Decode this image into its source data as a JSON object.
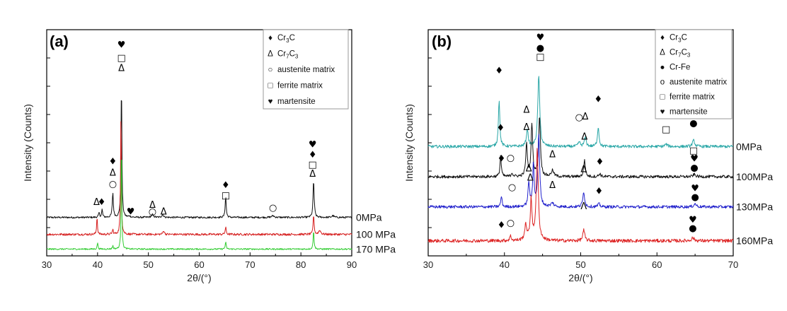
{
  "chart_data": [
    {
      "type": "line",
      "panel_label": "(a)",
      "xlabel": "2θ/(°)",
      "ylabel": "Intensity (Counts)",
      "xlim": [
        30,
        90
      ],
      "xticks": [
        30,
        40,
        50,
        60,
        70,
        80,
        90
      ],
      "series": [
        {
          "name": "0MPa",
          "color": "#111111",
          "offset": 0.68,
          "noise": 0.01,
          "peaks": [
            [
              40.3,
              0.08,
              0.25
            ],
            [
              40.9,
              0.14,
              0.22
            ],
            [
              43.0,
              0.44,
              0.25
            ],
            [
              44.7,
              2.45,
              0.2
            ],
            [
              46.3,
              0.02,
              0.4
            ],
            [
              50.8,
              0.05,
              0.5
            ],
            [
              52.8,
              0.05,
              0.4
            ],
            [
              65.2,
              0.36,
              0.25
            ],
            [
              74.5,
              0.03,
              0.6
            ],
            [
              82.5,
              0.66,
              0.26
            ],
            [
              86.3,
              0.03,
              0.5
            ]
          ]
        },
        {
          "name": "100 MPa",
          "color": "#d62020",
          "offset": 0.38,
          "noise": 0.012,
          "peaks": [
            [
              39.9,
              0.33,
              0.18
            ],
            [
              43.0,
              0.08,
              0.25
            ],
            [
              44.6,
              2.2,
              0.18
            ],
            [
              53.0,
              0.07,
              0.3
            ],
            [
              65.2,
              0.12,
              0.25
            ],
            [
              82.5,
              0.36,
              0.22
            ],
            [
              83.7,
              0.07,
              0.5
            ]
          ]
        },
        {
          "name": "170 MPa",
          "color": "#33cc33",
          "offset": 0.12,
          "noise": 0.008,
          "peaks": [
            [
              40.0,
              0.12,
              0.18
            ],
            [
              43.0,
              0.06,
              0.2
            ],
            [
              44.7,
              2.1,
              0.15
            ],
            [
              65.2,
              0.12,
              0.22
            ],
            [
              82.5,
              0.35,
              0.2
            ]
          ]
        }
      ],
      "annotations": [
        {
          "x": 39.8,
          "y": 0.9,
          "symbol": "Δ"
        },
        {
          "x": 40.8,
          "y": 0.9,
          "symbol": "♦"
        },
        {
          "x": 43.0,
          "y": 1.62,
          "symbol": "♦"
        },
        {
          "x": 43.0,
          "y": 1.42,
          "symbol": "Δ"
        },
        {
          "x": 43.0,
          "y": 1.22,
          "symbol": "○"
        },
        {
          "x": 44.7,
          "y": 3.68,
          "symbol": "♥"
        },
        {
          "x": 44.7,
          "y": 3.45,
          "symbol": "□"
        },
        {
          "x": 44.7,
          "y": 3.27,
          "symbol": "Δ"
        },
        {
          "x": 46.5,
          "y": 0.73,
          "symbol": "♥"
        },
        {
          "x": 50.8,
          "y": 0.85,
          "symbol": "Δ"
        },
        {
          "x": 50.8,
          "y": 0.73,
          "symbol": "○"
        },
        {
          "x": 53.0,
          "y": 0.73,
          "symbol": "Δ"
        },
        {
          "x": 65.2,
          "y": 1.2,
          "symbol": "♦"
        },
        {
          "x": 65.2,
          "y": 1.02,
          "symbol": "□"
        },
        {
          "x": 74.5,
          "y": 0.8,
          "symbol": "○"
        },
        {
          "x": 82.3,
          "y": 1.92,
          "symbol": "♥"
        },
        {
          "x": 82.3,
          "y": 1.74,
          "symbol": "♦"
        },
        {
          "x": 82.3,
          "y": 1.56,
          "symbol": "□"
        },
        {
          "x": 82.3,
          "y": 1.4,
          "symbol": "Δ"
        }
      ],
      "legend": {
        "placement": "top-right",
        "entries": [
          {
            "symbol": "♦",
            "text": "Cr",
            "sub1": "3",
            "text2": "C",
            "sub2": ""
          },
          {
            "symbol": "Δ",
            "text": "Cr",
            "sub1": "7",
            "text2": "C",
            "sub2": "3"
          },
          {
            "symbol": "○",
            "text": "austenite matrix",
            "sub1": "",
            "text2": "",
            "sub2": ""
          },
          {
            "symbol": "□",
            "text": "ferrite matrix",
            "sub1": "",
            "text2": "",
            "sub2": ""
          },
          {
            "symbol": "♥",
            "text": "martensite",
            "sub1": "",
            "text2": "",
            "sub2": ""
          }
        ]
      }
    },
    {
      "type": "line",
      "panel_label": "(b)",
      "xlabel": "2θ/(°)",
      "ylabel": "Intensity (Counts)",
      "xlim": [
        30,
        70
      ],
      "xticks": [
        30,
        40,
        50,
        60,
        70
      ],
      "series": [
        {
          "name": "0MPa",
          "color": "#2aa7a7",
          "offset": 1.45,
          "noise": 0.012,
          "peaks": [
            [
              39.3,
              0.62,
              0.22
            ],
            [
              43.0,
              0.22,
              0.3
            ],
            [
              44.5,
              0.95,
              0.3
            ],
            [
              49.8,
              0.06,
              0.3
            ],
            [
              50.6,
              0.12,
              0.3
            ],
            [
              52.3,
              0.26,
              0.25
            ],
            [
              61.2,
              0.03,
              0.4
            ],
            [
              64.8,
              0.08,
              0.35
            ]
          ]
        },
        {
          "name": "100MPa",
          "color": "#111111",
          "offset": 1.05,
          "noise": 0.012,
          "peaks": [
            [
              39.5,
              0.28,
              0.2
            ],
            [
              41.0,
              0.05,
              0.25
            ],
            [
              42.9,
              0.42,
              0.25
            ],
            [
              43.6,
              0.7,
              0.25
            ],
            [
              44.6,
              0.8,
              0.28
            ],
            [
              46.3,
              0.08,
              0.4
            ],
            [
              50.5,
              0.22,
              0.25
            ],
            [
              52.5,
              0.04,
              0.3
            ],
            [
              64.9,
              0.03,
              0.4
            ]
          ]
        },
        {
          "name": "130MPa",
          "color": "#2222cc",
          "offset": 0.65,
          "noise": 0.012,
          "peaks": [
            [
              39.6,
              0.14,
              0.2
            ],
            [
              43.2,
              0.32,
              0.25
            ],
            [
              43.8,
              0.58,
              0.22
            ],
            [
              44.5,
              0.95,
              0.28
            ],
            [
              46.3,
              0.05,
              0.4
            ],
            [
              50.4,
              0.2,
              0.28
            ],
            [
              52.4,
              0.04,
              0.3
            ],
            [
              65.0,
              0.04,
              0.4
            ]
          ]
        },
        {
          "name": "160MPa",
          "color": "#dd2222",
          "offset": 0.2,
          "noise": 0.014,
          "peaks": [
            [
              40.8,
              0.06,
              0.25
            ],
            [
              42.8,
              0.2,
              0.35
            ],
            [
              43.5,
              0.55,
              0.25
            ],
            [
              44.3,
              1.2,
              0.32
            ],
            [
              50.4,
              0.14,
              0.3
            ],
            [
              64.7,
              0.04,
              0.4
            ]
          ]
        }
      ],
      "annotations": [
        {
          "x": 39.3,
          "y": 2.42,
          "symbol": "♦"
        },
        {
          "x": 42.9,
          "y": 1.9,
          "symbol": "Δ"
        },
        {
          "x": 44.7,
          "y": 2.86,
          "symbol": "♥"
        },
        {
          "x": 44.7,
          "y": 2.72,
          "symbol": "●"
        },
        {
          "x": 44.7,
          "y": 2.6,
          "symbol": "□"
        },
        {
          "x": 49.8,
          "y": 1.8,
          "symbol": "○"
        },
        {
          "x": 50.6,
          "y": 1.81,
          "symbol": "Δ"
        },
        {
          "x": 52.3,
          "y": 2.04,
          "symbol": "♦"
        },
        {
          "x": 61.2,
          "y": 1.64,
          "symbol": "□"
        },
        {
          "x": 64.8,
          "y": 1.72,
          "symbol": "●"
        },
        {
          "x": 64.8,
          "y": 1.36,
          "symbol": "□"
        },
        {
          "x": 39.5,
          "y": 1.66,
          "symbol": "♦"
        },
        {
          "x": 40.8,
          "y": 1.26,
          "symbol": "○"
        },
        {
          "x": 42.9,
          "y": 1.67,
          "symbol": "Δ"
        },
        {
          "x": 46.3,
          "y": 1.31,
          "symbol": "Δ"
        },
        {
          "x": 50.5,
          "y": 1.54,
          "symbol": "Δ"
        },
        {
          "x": 52.5,
          "y": 1.21,
          "symbol": "♦"
        },
        {
          "x": 64.9,
          "y": 1.25,
          "symbol": "♥"
        },
        {
          "x": 64.9,
          "y": 1.13,
          "symbol": "●"
        },
        {
          "x": 39.6,
          "y": 1.25,
          "symbol": "♦"
        },
        {
          "x": 41.0,
          "y": 0.87,
          "symbol": "○"
        },
        {
          "x": 43.2,
          "y": 1.12,
          "symbol": "Δ"
        },
        {
          "x": 43.4,
          "y": 1.0,
          "symbol": "Δ"
        },
        {
          "x": 46.3,
          "y": 0.9,
          "symbol": "Δ"
        },
        {
          "x": 50.4,
          "y": 1.11,
          "symbol": "Δ"
        },
        {
          "x": 52.4,
          "y": 0.82,
          "symbol": "♦"
        },
        {
          "x": 65.0,
          "y": 0.86,
          "symbol": "♥"
        },
        {
          "x": 65.0,
          "y": 0.74,
          "symbol": "●"
        },
        {
          "x": 39.6,
          "y": 0.37,
          "symbol": "♦"
        },
        {
          "x": 40.8,
          "y": 0.4,
          "symbol": "○"
        },
        {
          "x": 50.4,
          "y": 0.62,
          "symbol": "Λ"
        },
        {
          "x": 64.7,
          "y": 0.44,
          "symbol": "♥"
        },
        {
          "x": 64.7,
          "y": 0.33,
          "symbol": "●"
        }
      ],
      "legend": {
        "placement": "top-right",
        "entries": [
          {
            "symbol": "♦",
            "text": "Cr",
            "sub1": "3",
            "text2": "C",
            "sub2": ""
          },
          {
            "symbol": "Δ",
            "text": "Cr",
            "sub1": "7",
            "text2": "C",
            "sub2": "3"
          },
          {
            "symbol": "●",
            "text": "Cr-Fe",
            "sub1": "",
            "text2": "",
            "sub2": ""
          },
          {
            "symbol": "o",
            "text": "austenite matrix",
            "sub1": "",
            "text2": "",
            "sub2": ""
          },
          {
            "symbol": "□",
            "text": "ferrite matrix",
            "sub1": "",
            "text2": "",
            "sub2": ""
          },
          {
            "symbol": "♥",
            "text": "martensite",
            "sub1": "",
            "text2": "",
            "sub2": ""
          }
        ]
      }
    }
  ]
}
